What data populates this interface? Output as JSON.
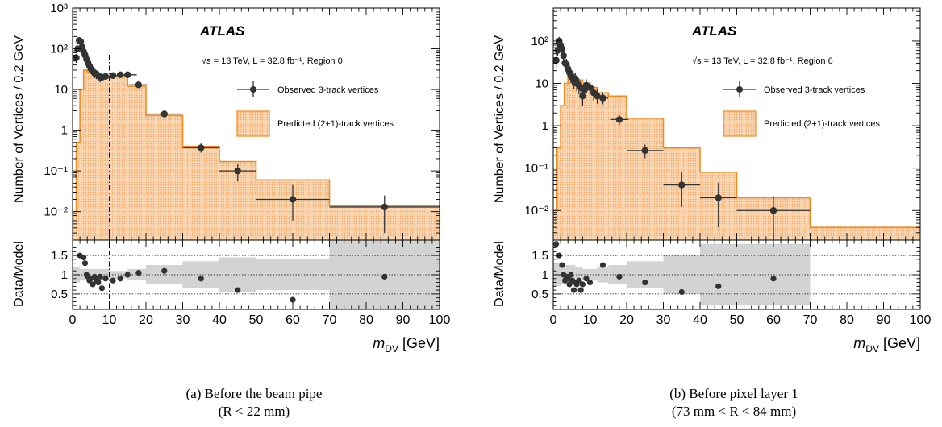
{
  "captions": [
    {
      "line1": "(a) Before the beam pipe",
      "line2": "(R < 22 mm)"
    },
    {
      "line1": "(b) Before pixel layer 1",
      "line2": "(73 mm < R < 84 mm)"
    }
  ],
  "chart_data": [
    {
      "type": "histogram",
      "experiment_label": "ATLAS",
      "info_text": "√s = 13 TeV, L = 32.8 fb⁻¹, Region 0",
      "ylabel": "Number of Vertices / 0.2 GeV",
      "ratio_ylabel": "Data/Model",
      "xlabel": "m_DV [GeV]",
      "xlim": [
        0,
        100
      ],
      "ylim_log": [
        0.002,
        1000
      ],
      "ratio_ylim": [
        0.1,
        1.9
      ],
      "yscale": "log",
      "x_ticks": [
        0,
        10,
        20,
        30,
        40,
        50,
        60,
        70,
        80,
        90,
        100
      ],
      "y_ticks": [
        "10⁻²",
        "10⁻¹",
        "1",
        "10",
        "10²",
        "10³"
      ],
      "ratio_ticks": [
        0.5,
        1,
        1.5
      ],
      "cut_line_x": 10,
      "legend": {
        "observed": "Observed 3-track vertices",
        "predicted": "Predicted (2+1)-track vertices"
      },
      "colors": {
        "predicted_fill": "#f7c99a",
        "predicted_line": "#f08c1e",
        "data": "#333333",
        "band": "#c0c0c0"
      },
      "predicted": {
        "edges": [
          0,
          1,
          2,
          3,
          4,
          5,
          6,
          8,
          10,
          15,
          20,
          30,
          40,
          50,
          70,
          100
        ],
        "values": [
          0.01,
          0.5,
          10,
          30,
          27,
          25,
          22,
          22,
          22,
          12,
          2.3,
          0.4,
          0.17,
          0.06,
          0.014
        ]
      },
      "observed": {
        "x": [
          1.0,
          1.4,
          1.8,
          2.2,
          2.6,
          3.0,
          3.4,
          3.8,
          4.2,
          4.6,
          5.0,
          5.5,
          6.0,
          6.5,
          7.0,
          7.5,
          8.0,
          9.0,
          11.0,
          13.0,
          15.0,
          18.0,
          25.0,
          35.0,
          45.0,
          60.0,
          85.0
        ],
        "y": [
          60,
          100,
          160,
          150,
          110,
          85,
          70,
          55,
          45,
          38,
          32,
          28,
          25,
          24,
          22,
          20,
          20,
          21,
          22,
          23,
          23,
          13,
          2.5,
          0.37,
          0.1,
          0.02,
          0.013
        ],
        "xerr": [
          0.2,
          0.2,
          0.2,
          0.2,
          0.2,
          0.2,
          0.2,
          0.2,
          0.2,
          0.2,
          0.2,
          0.25,
          0.25,
          0.25,
          0.25,
          0.25,
          0.5,
          1,
          1,
          1,
          2.5,
          2.5,
          5,
          5,
          5,
          10,
          15
        ],
        "ylo": [
          45,
          85,
          140,
          130,
          95,
          72,
          58,
          45,
          36,
          30,
          25,
          22,
          19,
          18,
          16,
          15,
          16,
          18,
          19,
          20,
          21,
          11.5,
          2.1,
          0.28,
          0.055,
          0.006,
          0.003
        ],
        "yhi": [
          75,
          120,
          180,
          170,
          125,
          100,
          82,
          65,
          54,
          46,
          39,
          34,
          31,
          30,
          28,
          25,
          25,
          24,
          25,
          26,
          26,
          14.5,
          2.9,
          0.47,
          0.15,
          0.045,
          0.025
        ]
      },
      "ratio": {
        "x": [
          2.0,
          3.0,
          3.4,
          3.8,
          4.2,
          4.6,
          5.0,
          5.5,
          6.0,
          6.5,
          7.0,
          7.5,
          8.0,
          9.0,
          11.0,
          13.0,
          15.0,
          18.0,
          25.0,
          35.0,
          45.0,
          60.0,
          85.0
        ],
        "y": [
          1.5,
          1.45,
          1.3,
          1.0,
          0.95,
          0.85,
          0.9,
          0.75,
          0.95,
          0.85,
          0.8,
          0.95,
          0.65,
          0.9,
          0.85,
          0.9,
          1.0,
          1.05,
          1.1,
          0.9,
          0.6,
          0.35,
          0.95
        ],
        "band_edges": [
          0,
          1,
          2,
          3,
          4,
          5,
          6,
          8,
          10,
          15,
          20,
          30,
          40,
          50,
          70,
          100
        ],
        "band_half": [
          0.2,
          0.2,
          0.15,
          0.15,
          0.15,
          0.15,
          0.15,
          0.15,
          0.1,
          0.15,
          0.25,
          0.35,
          0.45,
          0.4,
          0.95
        ]
      }
    },
    {
      "type": "histogram",
      "experiment_label": "ATLAS",
      "info_text": "√s = 13 TeV, L = 32.8 fb⁻¹, Region 6",
      "ylabel": "Number of Vertices / 0.2 GeV",
      "ratio_ylabel": "Data/Model",
      "xlabel": "m_DV [GeV]",
      "xlim": [
        0,
        100
      ],
      "ylim_log": [
        0.002,
        600
      ],
      "ratio_ylim": [
        0.1,
        1.9
      ],
      "yscale": "log",
      "x_ticks": [
        0,
        10,
        20,
        30,
        40,
        50,
        60,
        70,
        80,
        90,
        100
      ],
      "y_ticks": [
        "10⁻²",
        "10⁻¹",
        "1",
        "10",
        "10²"
      ],
      "ratio_ticks": [
        0.5,
        1,
        1.5
      ],
      "cut_line_x": 10,
      "legend": {
        "observed": "Observed 3-track vertices",
        "predicted": "Predicted (2+1)-track vertices"
      },
      "colors": {
        "predicted_fill": "#f7c99a",
        "predicted_line": "#f08c1e",
        "data": "#333333",
        "band": "#c0c0c0"
      },
      "predicted": {
        "edges": [
          0,
          1,
          2,
          3,
          4,
          5,
          6,
          8,
          10,
          12,
          15,
          20,
          30,
          40,
          50,
          70,
          100
        ],
        "values": [
          0.01,
          0.3,
          3,
          10,
          15,
          14,
          12,
          10,
          8,
          6,
          5,
          1.5,
          0.3,
          0.08,
          0.02,
          0.004
        ]
      },
      "observed": {
        "x": [
          0.8,
          1.2,
          1.6,
          2.0,
          2.4,
          2.8,
          3.2,
          3.6,
          4.0,
          4.4,
          4.8,
          5.2,
          5.6,
          6.0,
          6.4,
          7.0,
          7.5,
          8.0,
          8.5,
          9.0,
          10.0,
          11.0,
          12.0,
          13.5,
          18.0,
          25.0,
          35.0,
          45.0,
          60.0
        ],
        "y": [
          35,
          60,
          100,
          80,
          65,
          45,
          30,
          28,
          22,
          18,
          15,
          14,
          12,
          13,
          10,
          9,
          8,
          5,
          7,
          9,
          8,
          6,
          5,
          4.5,
          1.4,
          0.26,
          0.04,
          0.02,
          0.01
        ],
        "xerr": [
          0.2,
          0.2,
          0.2,
          0.2,
          0.2,
          0.2,
          0.2,
          0.2,
          0.2,
          0.2,
          0.2,
          0.2,
          0.2,
          0.2,
          0.2,
          0.3,
          0.25,
          0.25,
          0.25,
          0.5,
          0.5,
          0.5,
          0.5,
          1.5,
          2.5,
          5,
          5,
          5,
          10
        ],
        "ylo": [
          24,
          45,
          80,
          64,
          51,
          34,
          21,
          19,
          15,
          12,
          10,
          9,
          7.5,
          8.5,
          6.5,
          5.5,
          5,
          3,
          4.5,
          6,
          5.5,
          4,
          3.3,
          3.2,
          1.05,
          0.17,
          0.012,
          0.004,
          0.002
        ],
        "yhi": [
          48,
          78,
          125,
          100,
          82,
          58,
          40,
          38,
          30,
          25,
          21,
          20,
          17,
          18,
          14,
          13,
          12,
          8,
          10.5,
          12.5,
          11,
          8.5,
          7.2,
          6.2,
          1.8,
          0.36,
          0.08,
          0.045,
          0.022
        ]
      },
      "ratio": {
        "x": [
          0.8,
          1.6,
          2.4,
          2.8,
          3.2,
          3.6,
          4.0,
          4.4,
          4.8,
          5.2,
          5.6,
          6.0,
          6.4,
          7.0,
          7.5,
          8.0,
          9.0,
          10.0,
          13.5,
          18.0,
          25.0,
          35.0,
          45.0,
          60.0
        ],
        "y": [
          1.8,
          1.5,
          1.25,
          1.0,
          0.85,
          0.95,
          0.9,
          0.75,
          1.0,
          0.85,
          0.6,
          0.8,
          0.75,
          0.85,
          0.6,
          0.75,
          0.9,
          0.8,
          1.25,
          0.95,
          0.8,
          0.55,
          0.7,
          0.9
        ],
        "band_edges": [
          0,
          1,
          2,
          3,
          4,
          5,
          6,
          8,
          10,
          12,
          15,
          20,
          30,
          40,
          50,
          70,
          100
        ],
        "band_half": [
          0.3,
          0.3,
          0.25,
          0.25,
          0.25,
          0.25,
          0.2,
          0.15,
          0.15,
          0.2,
          0.25,
          0.35,
          0.5,
          0.8,
          0.8,
          0
        ]
      }
    }
  ]
}
